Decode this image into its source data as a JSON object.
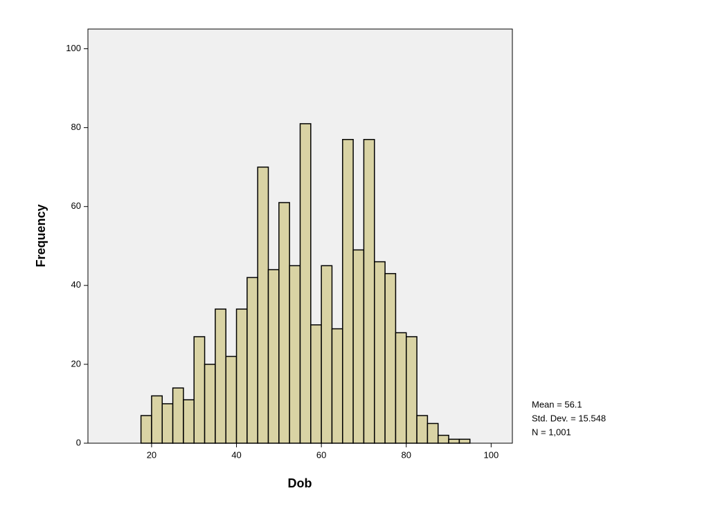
{
  "chart_data": {
    "type": "histogram",
    "x_label": "Dob",
    "y_label": "Frequency",
    "bins": [
      17.5,
      20,
      22.5,
      25,
      27.5,
      30,
      32.5,
      35,
      37.5,
      40,
      42.5,
      45,
      47.5,
      50,
      52.5,
      55,
      57.5,
      60,
      62.5,
      65,
      67.5,
      70,
      72.5,
      75,
      77.5,
      80,
      82.5,
      85,
      87.5,
      90,
      92.5,
      95
    ],
    "counts": [
      7,
      12,
      10,
      14,
      11,
      27,
      20,
      34,
      22,
      34,
      42,
      70,
      44,
      61,
      45,
      81,
      30,
      45,
      29,
      77,
      49,
      77,
      46,
      43,
      28,
      27,
      7,
      5,
      2,
      1,
      1
    ],
    "color": "#d9d3a4",
    "xlim": [
      5,
      105
    ],
    "xticks": [
      20,
      40,
      60,
      80,
      100
    ],
    "ylim": [
      0,
      105
    ],
    "yticks": [
      0,
      20,
      40,
      60,
      80,
      100
    ],
    "grid": false,
    "stats": [
      "Mean = 56.1",
      "Std. Dev. = 15.548",
      "N = 1,001"
    ]
  }
}
